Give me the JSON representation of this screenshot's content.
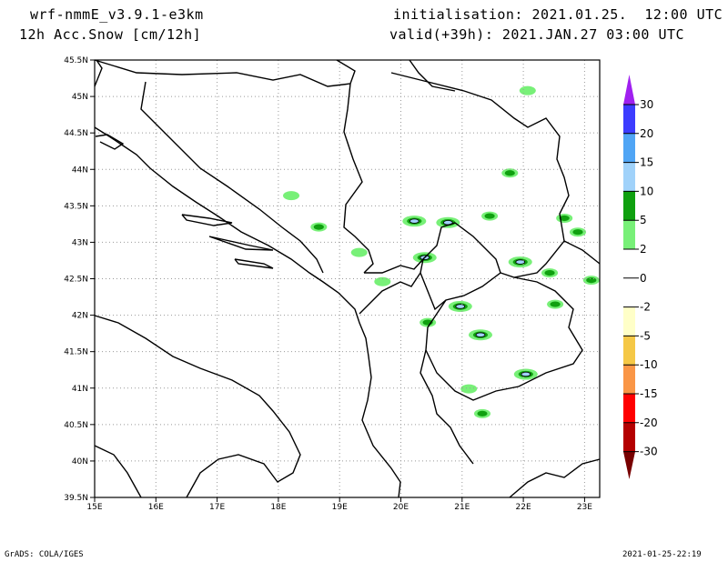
{
  "header": {
    "model": "wrf-nmmE_v3.9.1-e3km",
    "variable": "12h Acc.Snow [cm/12h]",
    "initialisation": "initialisation: 2021.01.25.  12:00 UTC",
    "valid": "valid(+39h): 2021.JAN.27 03:00 UTC"
  },
  "footer": {
    "credit": "GrADS: COLA/IGES",
    "timestamp": "2021-01-25-22:19"
  },
  "map": {
    "lon_labels": [
      "15E",
      "16E",
      "17E",
      "18E",
      "19E",
      "20E",
      "21E",
      "22E",
      "23E"
    ],
    "lat_labels": [
      "45.5N",
      "45N",
      "44.5N",
      "44N",
      "43.5N",
      "43N",
      "42.5N",
      "42N",
      "41.5N",
      "41N",
      "40.5N",
      "40N",
      "39.5N"
    ],
    "snow_areas": [
      {
        "lon": 20.22,
        "lat": 43.29,
        "level": 10
      },
      {
        "lon": 20.77,
        "lat": 43.27,
        "level": 10
      },
      {
        "lon": 21.45,
        "lat": 43.36,
        "level": 5
      },
      {
        "lon": 20.39,
        "lat": 42.79,
        "level": 10
      },
      {
        "lon": 20.97,
        "lat": 42.12,
        "level": 10
      },
      {
        "lon": 21.3,
        "lat": 41.73,
        "level": 10
      },
      {
        "lon": 21.95,
        "lat": 42.73,
        "level": 10
      },
      {
        "lon": 22.04,
        "lat": 41.19,
        "level": 10
      },
      {
        "lon": 22.52,
        "lat": 42.15,
        "level": 5
      },
      {
        "lon": 22.89,
        "lat": 43.14,
        "level": 5
      },
      {
        "lon": 23.11,
        "lat": 42.48,
        "level": 5
      },
      {
        "lon": 21.78,
        "lat": 43.95,
        "level": 5
      },
      {
        "lon": 22.07,
        "lat": 45.08,
        "level": 2
      },
      {
        "lon": 19.7,
        "lat": 42.46,
        "level": 2
      },
      {
        "lon": 20.44,
        "lat": 41.9,
        "level": 5
      },
      {
        "lon": 21.11,
        "lat": 40.99,
        "level": 2
      },
      {
        "lon": 21.33,
        "lat": 40.65,
        "level": 5
      },
      {
        "lon": 18.21,
        "lat": 43.64,
        "level": 2
      },
      {
        "lon": 18.66,
        "lat": 43.21,
        "level": 5
      },
      {
        "lon": 19.32,
        "lat": 42.86,
        "level": 2
      },
      {
        "lon": 22.67,
        "lat": 43.33,
        "level": 5
      },
      {
        "lon": 22.43,
        "lat": 42.58,
        "level": 5
      }
    ]
  },
  "colorbar": {
    "labels": [
      "30",
      "20",
      "15",
      "10",
      "5",
      "2",
      "0",
      "-2",
      "-5",
      "-10",
      "-15",
      "-20",
      "-30"
    ],
    "colors": [
      "#3c3cff",
      "#50a5f5",
      "#a0d2fa",
      "#0fa00f",
      "#78f078",
      "#ffffff",
      "#ffffff",
      "#ffffc8",
      "#f5c846",
      "#fa9646",
      "#ff0000",
      "#b40000"
    ],
    "top_arrow_color": "#a020f0",
    "bottom_arrow_color": "#780000"
  }
}
